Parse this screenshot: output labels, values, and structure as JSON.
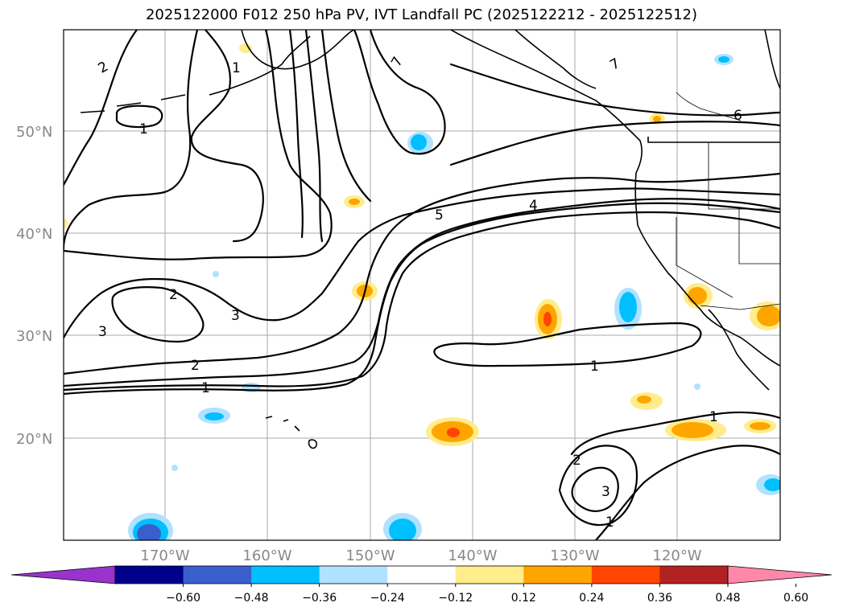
{
  "title": "2025122000 F012 250 hPa PV, IVT Landfall PC (2025122212 - 2025122512)",
  "map": {
    "lat_labels": [
      "50°N",
      "40°N",
      "30°N",
      "20°N"
    ],
    "lon_labels": [
      "170°W",
      "160°W",
      "150°W",
      "140°W",
      "130°W",
      "120°W"
    ]
  },
  "contour_labels": [
    "2",
    "1",
    "1",
    "7",
    "7",
    "6",
    "5",
    "4",
    "2",
    "3",
    "3",
    "2",
    "1",
    "1",
    "1",
    "2",
    "3",
    "1"
  ],
  "colorbar": {
    "colors": [
      "#9933cc",
      "#00008b",
      "#3a5fcd",
      "#00bfff",
      "#b0e2ff",
      "#ffffff",
      "#ffec8b",
      "#ffa500",
      "#ff4500",
      "#b22222",
      "#ff88aa"
    ],
    "tick_labels": [
      "−0.60",
      "−0.48",
      "−0.36",
      "−0.24",
      "−0.12",
      "0.12",
      "0.24",
      "0.36",
      "0.48",
      "0.60"
    ]
  }
}
